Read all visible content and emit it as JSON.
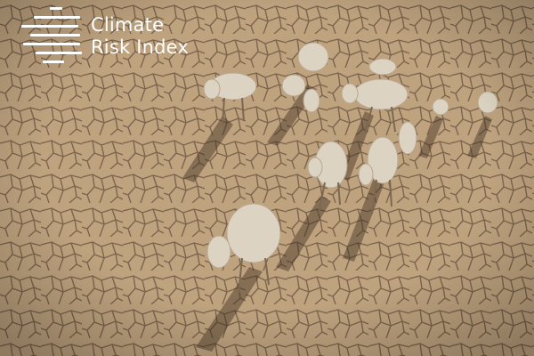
{
  "logo": {
    "line1": "Climate",
    "line2": "Risk Index",
    "color": "#ffffff",
    "icon": "stacked-lines-logo-icon"
  },
  "photo": {
    "icon": "photo",
    "ground_color": "#b89c79",
    "crack_color": "#5f4a34",
    "cattle_color": "#ddd3c2"
  }
}
